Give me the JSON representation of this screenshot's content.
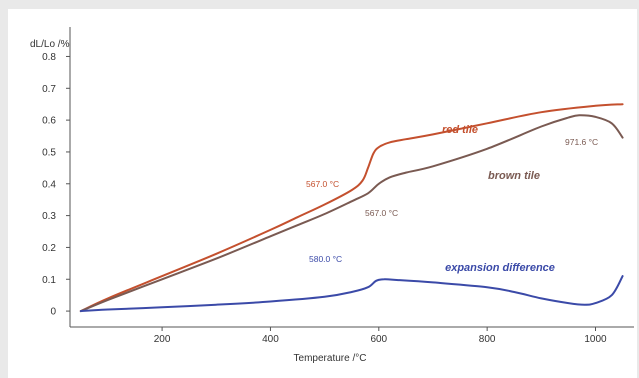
{
  "chart_data": {
    "type": "line",
    "title": "",
    "ylabel": "dL/Lo /%",
    "xlabel": "Temperature /°C",
    "xlim": [
      30,
      1060
    ],
    "ylim": [
      -0.05,
      0.88
    ],
    "xticks": [
      200,
      400,
      600,
      800,
      1000
    ],
    "xtick_labels": [
      "200",
      "400",
      "600",
      "800",
      "1000"
    ],
    "yticks": [
      0,
      0.1,
      0.2,
      0.3,
      0.4,
      0.5,
      0.6,
      0.7,
      0.8
    ],
    "ytick_labels": [
      "0",
      "0.1",
      "0.2",
      "0.3",
      "0.4",
      "0.5",
      "0.6",
      "0.7",
      "0.8"
    ],
    "grid": false,
    "legend": "none",
    "series": [
      {
        "name": "red tile",
        "color": "#c4502e",
        "x": [
          50,
          100,
          200,
          300,
          400,
          450,
          500,
          550,
          570,
          580,
          590,
          600,
          620,
          650,
          700,
          800,
          900,
          1000,
          1050
        ],
        "y": [
          0.0,
          0.04,
          0.11,
          0.18,
          0.255,
          0.295,
          0.335,
          0.38,
          0.41,
          0.45,
          0.495,
          0.515,
          0.53,
          0.54,
          0.555,
          0.59,
          0.625,
          0.645,
          0.65
        ]
      },
      {
        "name": "brown tile",
        "color": "#7a5a52",
        "x": [
          50,
          100,
          200,
          300,
          400,
          450,
          500,
          550,
          580,
          600,
          620,
          650,
          700,
          800,
          900,
          950,
          970,
          1000,
          1030,
          1050
        ],
        "y": [
          0.0,
          0.035,
          0.1,
          0.165,
          0.235,
          0.27,
          0.305,
          0.345,
          0.37,
          0.4,
          0.42,
          0.435,
          0.455,
          0.51,
          0.58,
          0.608,
          0.615,
          0.61,
          0.59,
          0.545
        ]
      },
      {
        "name": "expansion difference",
        "color": "#3b4aa8",
        "x": [
          50,
          100,
          200,
          300,
          400,
          500,
          550,
          580,
          595,
          610,
          630,
          700,
          800,
          850,
          900,
          950,
          980,
          1000,
          1030,
          1050
        ],
        "y": [
          0.0,
          0.005,
          0.012,
          0.02,
          0.03,
          0.045,
          0.06,
          0.075,
          0.095,
          0.1,
          0.098,
          0.09,
          0.075,
          0.06,
          0.04,
          0.025,
          0.02,
          0.025,
          0.05,
          0.11
        ]
      }
    ],
    "annotations": [
      {
        "text": "567.0 °C",
        "series": "red tile",
        "x": 567,
        "y": 0.4
      },
      {
        "text": "567.0 °C",
        "series": "brown tile",
        "x": 567,
        "y": 0.36
      },
      {
        "text": "580.0 °C",
        "series": "expansion difference",
        "x": 580,
        "y": 0.075
      },
      {
        "text": "971.6 °C",
        "series": "brown tile",
        "x": 971.6,
        "y": 0.615
      }
    ]
  }
}
